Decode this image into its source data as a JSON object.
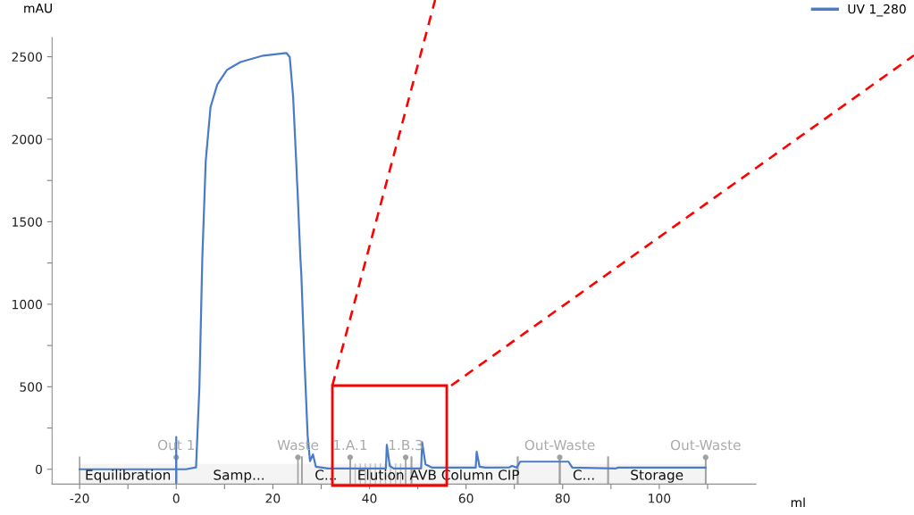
{
  "chart_data": {
    "type": "line",
    "xlabel": "ml",
    "ylabel": "mAU",
    "series": [
      {
        "name": "UV 1_280",
        "color": "#4a7bc8",
        "x": [
          -20,
          -10,
          -1,
          -0.01,
          0,
          0,
          0.01,
          2,
          4.1,
          4.8,
          5.4,
          6.1,
          7.1,
          8.5,
          10.5,
          13.3,
          18,
          22.8,
          23.5,
          24.2,
          24.9,
          25.0,
          25.1,
          25.7,
          25.9,
          26.0,
          26.5,
          27.2,
          27.7,
          28.3,
          28.9,
          31.4,
          40,
          43.4,
          43.6,
          44.2,
          45,
          50.7,
          50.9,
          51.6,
          53,
          60,
          62.0,
          62.2,
          62.8,
          64,
          69,
          69.5,
          70.5,
          71.2,
          81.2,
          82,
          91,
          91.5,
          109.6
        ],
        "values": [
          0,
          0,
          0,
          0,
          196,
          -85,
          0,
          0,
          11,
          500,
          1280,
          1865,
          2195,
          2332,
          2420,
          2468,
          2507,
          2523,
          2498,
          2256,
          1827,
          1750,
          1700,
          1280,
          1180,
          1100,
          694,
          206,
          49,
          90,
          16,
          5,
          5,
          5,
          148,
          20,
          5,
          5,
          164,
          30,
          10,
          10,
          10,
          106,
          15,
          10,
          12,
          20,
          10,
          46,
          46,
          10,
          5,
          10,
          10
        ]
      }
    ],
    "xlim": [
      -25.7,
      120
    ],
    "ylim": [
      -90,
      2616
    ],
    "xticks": [
      -20,
      {
        "value": -10,
        "label": null
      },
      0,
      {
        "value": 10,
        "label": null
      },
      20,
      {
        "value": 30,
        "label": null
      },
      40,
      {
        "value": 50,
        "label": null
      },
      60,
      {
        "value": 70,
        "label": null
      },
      80,
      {
        "value": 90,
        "label": null
      },
      100,
      {
        "value": 110,
        "label": null
      }
    ],
    "yticks": [
      0,
      {
        "value": 250,
        "label": null
      },
      500,
      {
        "value": 750,
        "label": null
      },
      1000,
      {
        "value": 1250,
        "label": null
      },
      1500,
      {
        "value": 1750,
        "label": null
      },
      2000,
      {
        "value": 2250,
        "label": null
      },
      2500
    ],
    "ref_lines": [
      {
        "axis": "x",
        "value": 0,
        "color": "#a0a0a0",
        "label": "Out 1"
      },
      {
        "axis": "x",
        "value": 25.2,
        "color": "#a0a0a0",
        "label": "Waste"
      },
      {
        "axis": "x",
        "value": 36,
        "color": "#a0a0a0",
        "label": "1.A.1"
      },
      {
        "axis": "x",
        "value": 47.5,
        "color": "#a0a0a0",
        "label": "1.B.3"
      },
      {
        "axis": "x",
        "value": 79.4,
        "color": "#a0a0a0",
        "label": "Out-Waste"
      },
      {
        "axis": "x",
        "value": 109.6,
        "color": "#a0a0a0",
        "label": "Out-Waste"
      }
    ],
    "bands": [
      {
        "axis": "x",
        "from": -20,
        "to": 0,
        "label": "Equilibration",
        "color": "#f4f4f4"
      },
      {
        "axis": "x",
        "from": 0,
        "to": 26,
        "label": "Samp...",
        "color": "#f4f4f4"
      },
      {
        "axis": "x",
        "from": 26,
        "to": 36,
        "label": "C...",
        "color": "#f4f4f4"
      },
      {
        "axis": "x",
        "from": 36,
        "to": 48.7,
        "label": "Elution",
        "color": "#f4f4f4"
      },
      {
        "axis": "x",
        "from": 48.7,
        "to": 70.7,
        "label": "AVB Column CIP",
        "color": "#f4f4f4"
      },
      {
        "axis": "x",
        "from": 70.7,
        "to": 79.4,
        "color": "#f4f4f4"
      },
      {
        "axis": "x",
        "from": 79.4,
        "to": 89.4,
        "label": "C...",
        "color": "#f4f4f4"
      },
      {
        "axis": "x",
        "from": 89.4,
        "to": 109.6,
        "label": "Storage",
        "color": "#f4f4f4"
      }
    ],
    "legend": "top right",
    "grid": false,
    "marker": "none",
    "line_style": "solid"
  }
}
